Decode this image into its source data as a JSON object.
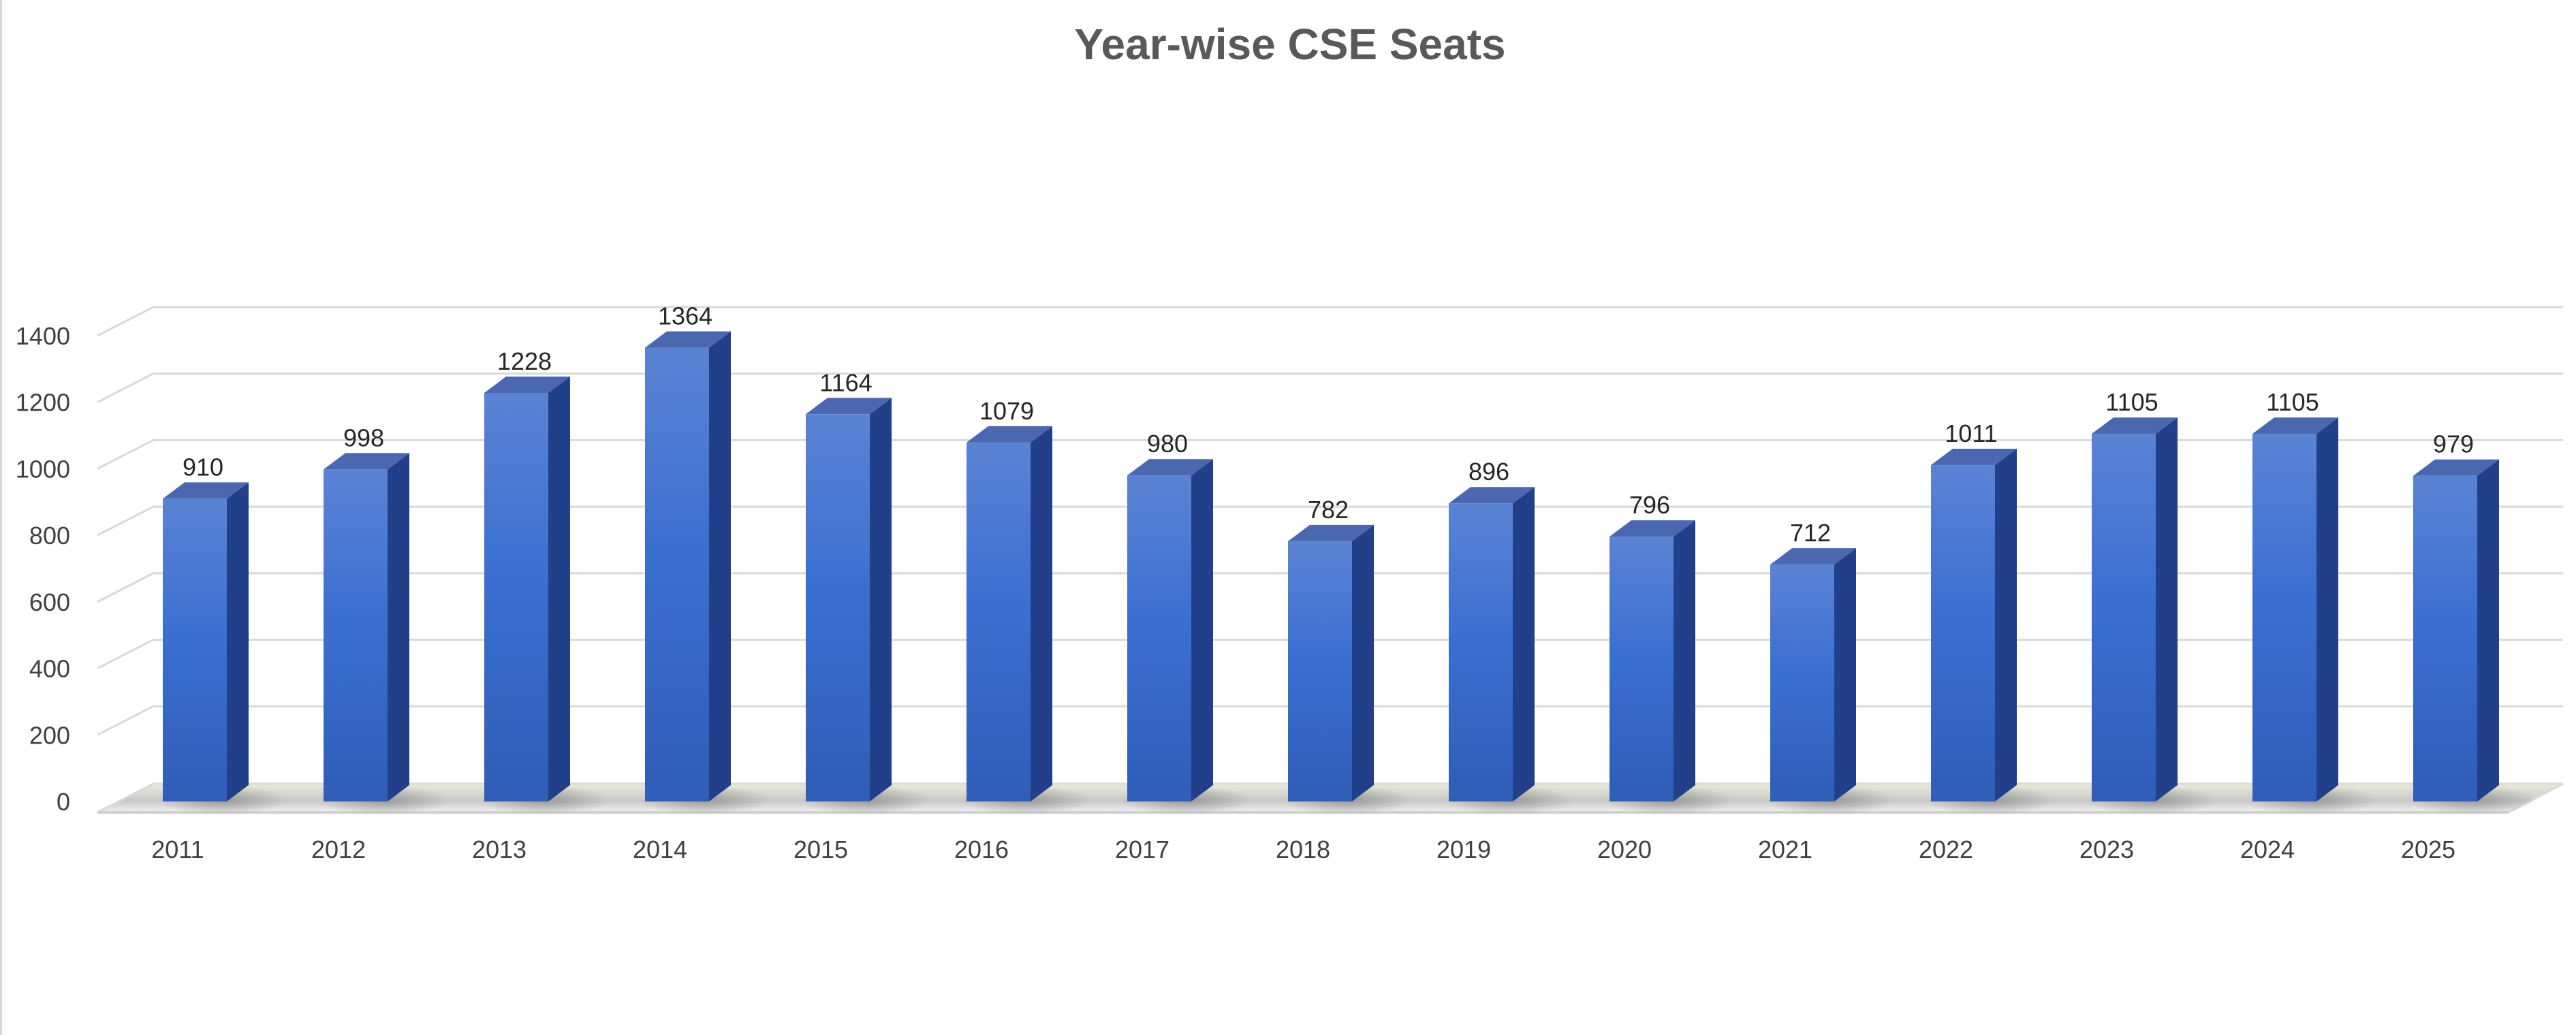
{
  "chart_data": {
    "type": "bar",
    "title": "Year-wise CSE Seats",
    "xlabel": "",
    "ylabel": "",
    "categories": [
      "2011",
      "2012",
      "2013",
      "2014",
      "2015",
      "2016",
      "2017",
      "2018",
      "2019",
      "2020",
      "2021",
      "2022",
      "2023",
      "2024",
      "2025"
    ],
    "values": [
      910,
      998,
      1228,
      1364,
      1164,
      1079,
      980,
      782,
      896,
      796,
      712,
      1011,
      1105,
      1105,
      979
    ],
    "ylim": [
      0,
      1400
    ],
    "y_ticks": [
      0,
      200,
      400,
      600,
      800,
      1000,
      1200,
      1400
    ],
    "grid": true,
    "legend": "none",
    "style": "3d-column",
    "colors": {
      "bar_front_top": "#5b83d4",
      "bar_front_mid": "#3a6fd1",
      "bar_front_bottom": "#2f5db8",
      "bar_side": "#22408a",
      "bar_top": "#4a67b0",
      "grid": "#d9d9d9",
      "floor": "#bfbfbf"
    }
  }
}
